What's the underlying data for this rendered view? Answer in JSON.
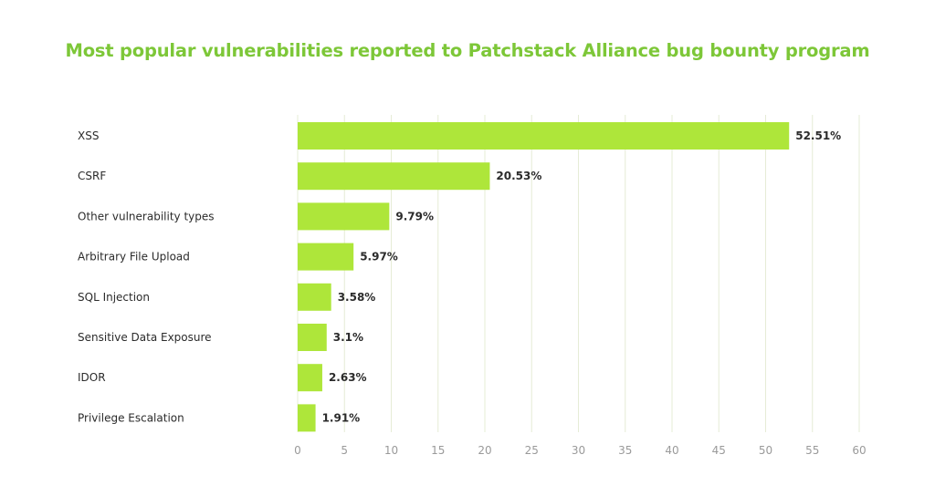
{
  "chart_data": {
    "type": "bar",
    "orientation": "horizontal",
    "title": "Most popular vulnerabilities reported to Patchstack Alliance bug bounty program",
    "categories": [
      "XSS",
      "CSRF",
      "Other vulnerability types",
      "Arbitrary File Upload",
      "SQL Injection",
      "Sensitive Data Exposure",
      "IDOR",
      "Privilege Escalation"
    ],
    "values": [
      52.51,
      20.53,
      9.79,
      5.97,
      3.58,
      3.1,
      2.63,
      1.91
    ],
    "value_labels": [
      "52.51%",
      "20.53%",
      "9.79%",
      "5.97%",
      "3.58%",
      "3.1%",
      "2.63%",
      "1.91%"
    ],
    "xlim": [
      0,
      60
    ],
    "xticks": [
      0,
      5,
      10,
      15,
      20,
      25,
      30,
      35,
      40,
      45,
      50,
      55,
      60
    ],
    "grid": true,
    "legend": false,
    "colors": {
      "title": "#7dc738",
      "bar": "#aee63a",
      "grid": "#e6ecd6",
      "category_text": "#2b2b2b",
      "value_text": "#2b2b2b",
      "tick_text": "#9a9a9a"
    }
  }
}
